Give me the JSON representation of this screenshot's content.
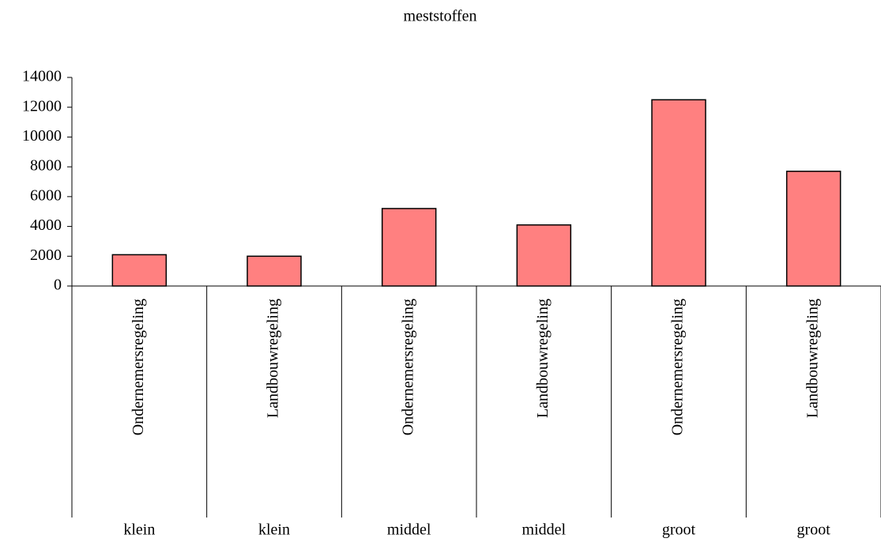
{
  "chart_data": {
    "type": "bar",
    "title": "meststoffen",
    "categories": [
      "Ondernemersregeling",
      "Landbouwregeling",
      "Ondernemersregeling",
      "Landbouwregeling",
      "Ondernemersregeling",
      "Landbouwregeling"
    ],
    "category_groups": [
      "klein",
      "klein",
      "middel",
      "middel",
      "groot",
      "groot"
    ],
    "values": [
      2100,
      2000,
      5200,
      4100,
      12500,
      7700
    ],
    "color": "#ff8080",
    "ylim": [
      0,
      14000
    ],
    "yticks": [
      0,
      2000,
      4000,
      6000,
      8000,
      10000,
      12000,
      14000
    ],
    "grid": false
  }
}
